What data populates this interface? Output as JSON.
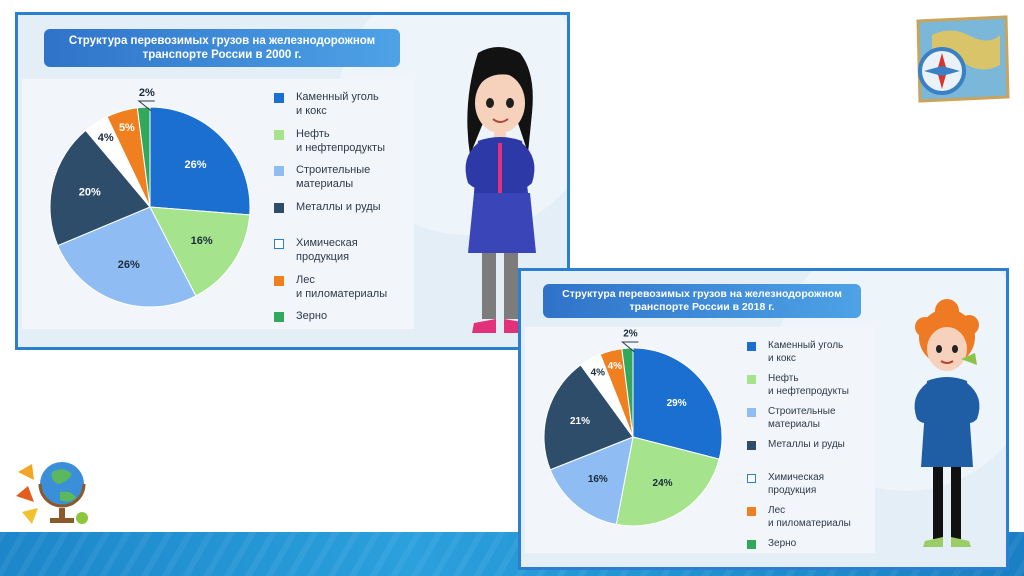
{
  "charts": {
    "chart2000": {
      "title": "Структура перевозимых грузов на железнодорожном транспорте России в 2000 г."
    },
    "chart2018": {
      "title": "Структура перевозимых грузов на железнодорожном транспорте России в 2018 г."
    }
  },
  "legend_items": [
    {
      "label_line1": "Каменный уголь",
      "label_line2": "и кокс",
      "color": "#1a6fd0"
    },
    {
      "label_line1": "Нефть",
      "label_line2": "и нефтепродукты",
      "color": "#a6e38d"
    },
    {
      "label_line1": "Строительные",
      "label_line2": "материалы",
      "color": "#8fbdf3"
    },
    {
      "label_line1": "Металлы и руды",
      "label_line2": "",
      "color": "#2e4d6b"
    },
    {
      "label_line1": "Химическая",
      "label_line2": "продукция",
      "color": "#ffffff"
    },
    {
      "label_line1": "Лес",
      "label_line2": "и пиломатериалы",
      "color": "#f07f1f"
    },
    {
      "label_line1": "Зерно",
      "label_line2": "",
      "color": "#31a85b"
    }
  ],
  "chart_data": [
    {
      "type": "pie",
      "title": "Структура перевозимых грузов на железнодорожном транспорте России в 2000 г.",
      "categories": [
        "Каменный уголь и кокс",
        "Нефть и нефтепродукты",
        "Строительные материалы",
        "Металлы и руды",
        "Химическая продукция",
        "Лес и пиломатериалы",
        "Зерно"
      ],
      "values": [
        26,
        16,
        26,
        20,
        4,
        5,
        2
      ],
      "labels": [
        "26%",
        "16%",
        "26%",
        "20%",
        "4%",
        "5%",
        "2%"
      ],
      "legend": "right"
    },
    {
      "type": "pie",
      "title": "Структура перевозимых грузов на железнодорожном транспорте России в 2018 г.",
      "categories": [
        "Каменный уголь и кокс",
        "Нефть и нефтепродукты",
        "Строительные материалы",
        "Металлы и руды",
        "Химическая продукция",
        "Лес и пиломатериалы",
        "Зерно"
      ],
      "values": [
        29,
        24,
        16,
        21,
        4,
        4,
        2
      ],
      "labels": [
        "29%",
        "24%",
        "16%",
        "21%",
        "4%",
        "4%",
        "2%"
      ],
      "legend": "right"
    }
  ]
}
